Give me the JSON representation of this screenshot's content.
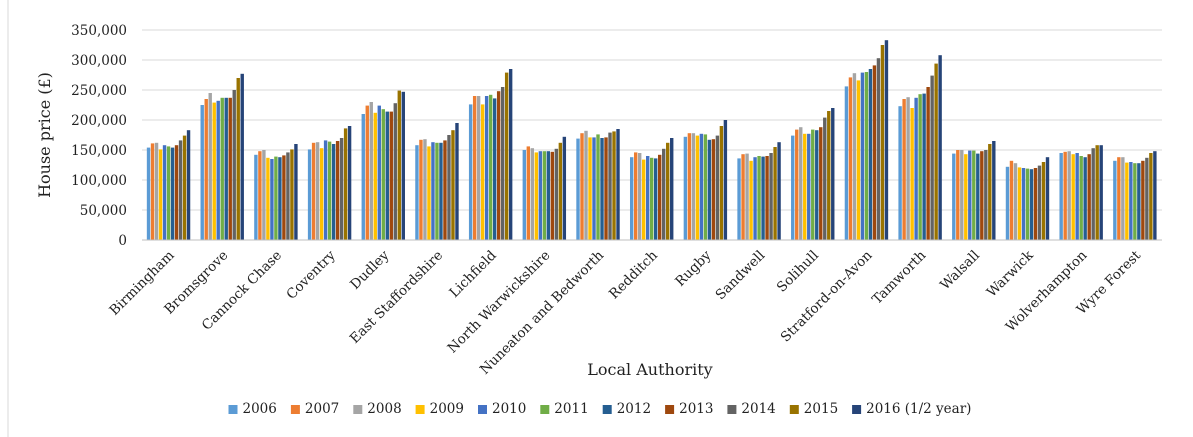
{
  "chart_data": {
    "type": "bar",
    "title": "",
    "xlabel": "Local Authority",
    "ylabel": "House price (£)",
    "ylim": [
      0,
      350000
    ],
    "yticks": [
      "0",
      "50,000",
      "100,000",
      "150,000",
      "200,000",
      "250,000",
      "300,000",
      "350,000"
    ],
    "grid": true,
    "legend_position": "bottom",
    "categories": [
      "Birmingham",
      "Bromsgrove",
      "Cannock Chase",
      "Coventry",
      "Dudley",
      "East Staffordshire",
      "Lichfield",
      "North Warwickshire",
      "Nuneaton and Bedworth",
      "Redditch",
      "Rugby",
      "Sandwell",
      "Solihull",
      "Stratford-on-Avon",
      "Tamworth",
      "Walsall",
      "Warwick",
      "Wolverhampton",
      "Wyre Forest"
    ],
    "series": [
      {
        "name": "2006",
        "color": "#5B9BD5",
        "values": [
          154000,
          225000,
          142000,
          151000,
          210000,
          158000,
          226000,
          150000,
          169000,
          138000,
          172000,
          136000,
          174000,
          256000,
          223000,
          144000,
          122000,
          145000,
          132000
        ]
      },
      {
        "name": "2007",
        "color": "#ED7D31",
        "values": [
          161000,
          235000,
          148000,
          162000,
          224000,
          167000,
          240000,
          156000,
          178000,
          146000,
          178000,
          143000,
          184000,
          271000,
          235000,
          150000,
          132000,
          147000,
          138000
        ]
      },
      {
        "name": "2008",
        "color": "#A5A5A5",
        "values": [
          162000,
          245000,
          150000,
          163000,
          230000,
          168000,
          240000,
          153000,
          182000,
          145000,
          178000,
          144000,
          188000,
          278000,
          238000,
          150000,
          128000,
          148000,
          138000
        ]
      },
      {
        "name": "2009",
        "color": "#FFC000",
        "values": [
          151000,
          229000,
          137000,
          153000,
          212000,
          156000,
          226000,
          146000,
          171000,
          134000,
          174000,
          132000,
          177000,
          266000,
          220000,
          143000,
          121000,
          143000,
          129000
        ]
      },
      {
        "name": "2010",
        "color": "#4472C4",
        "values": [
          158000,
          232000,
          135000,
          166000,
          224000,
          163000,
          240000,
          148000,
          171000,
          140000,
          177000,
          138000,
          177000,
          279000,
          237000,
          149000,
          120000,
          145000,
          130000
        ]
      },
      {
        "name": "2011",
        "color": "#70AD47",
        "values": [
          156000,
          237000,
          139000,
          164000,
          218000,
          162000,
          242000,
          148000,
          176000,
          137000,
          176000,
          140000,
          184000,
          280000,
          243000,
          149000,
          119000,
          140000,
          128000
        ]
      },
      {
        "name": "2012",
        "color": "#255E91",
        "values": [
          154000,
          237000,
          138000,
          160000,
          214000,
          162000,
          236000,
          148000,
          170000,
          136000,
          167000,
          139000,
          183000,
          285000,
          244000,
          144000,
          118000,
          138000,
          128000
        ]
      },
      {
        "name": "2013",
        "color": "#9E480E",
        "values": [
          158000,
          237000,
          141000,
          165000,
          214000,
          166000,
          248000,
          147000,
          171000,
          142000,
          168000,
          140000,
          188000,
          291000,
          255000,
          148000,
          120000,
          143000,
          132000
        ]
      },
      {
        "name": "2014",
        "color": "#636363",
        "values": [
          166000,
          250000,
          146000,
          170000,
          228000,
          175000,
          255000,
          152000,
          179000,
          152000,
          174000,
          145000,
          204000,
          303000,
          274000,
          150000,
          124000,
          153000,
          137000
        ]
      },
      {
        "name": "2015",
        "color": "#997300",
        "values": [
          174000,
          270000,
          151000,
          186000,
          249000,
          183000,
          279000,
          162000,
          181000,
          162000,
          190000,
          155000,
          215000,
          325000,
          294000,
          160000,
          130000,
          158000,
          145000
        ]
      },
      {
        "name": "2016 (1/2 year)",
        "color": "#264478",
        "values": [
          183000,
          277000,
          160000,
          190000,
          247000,
          195000,
          285000,
          172000,
          185000,
          170000,
          200000,
          163000,
          220000,
          333000,
          308000,
          165000,
          138000,
          158000,
          148000
        ]
      }
    ]
  }
}
